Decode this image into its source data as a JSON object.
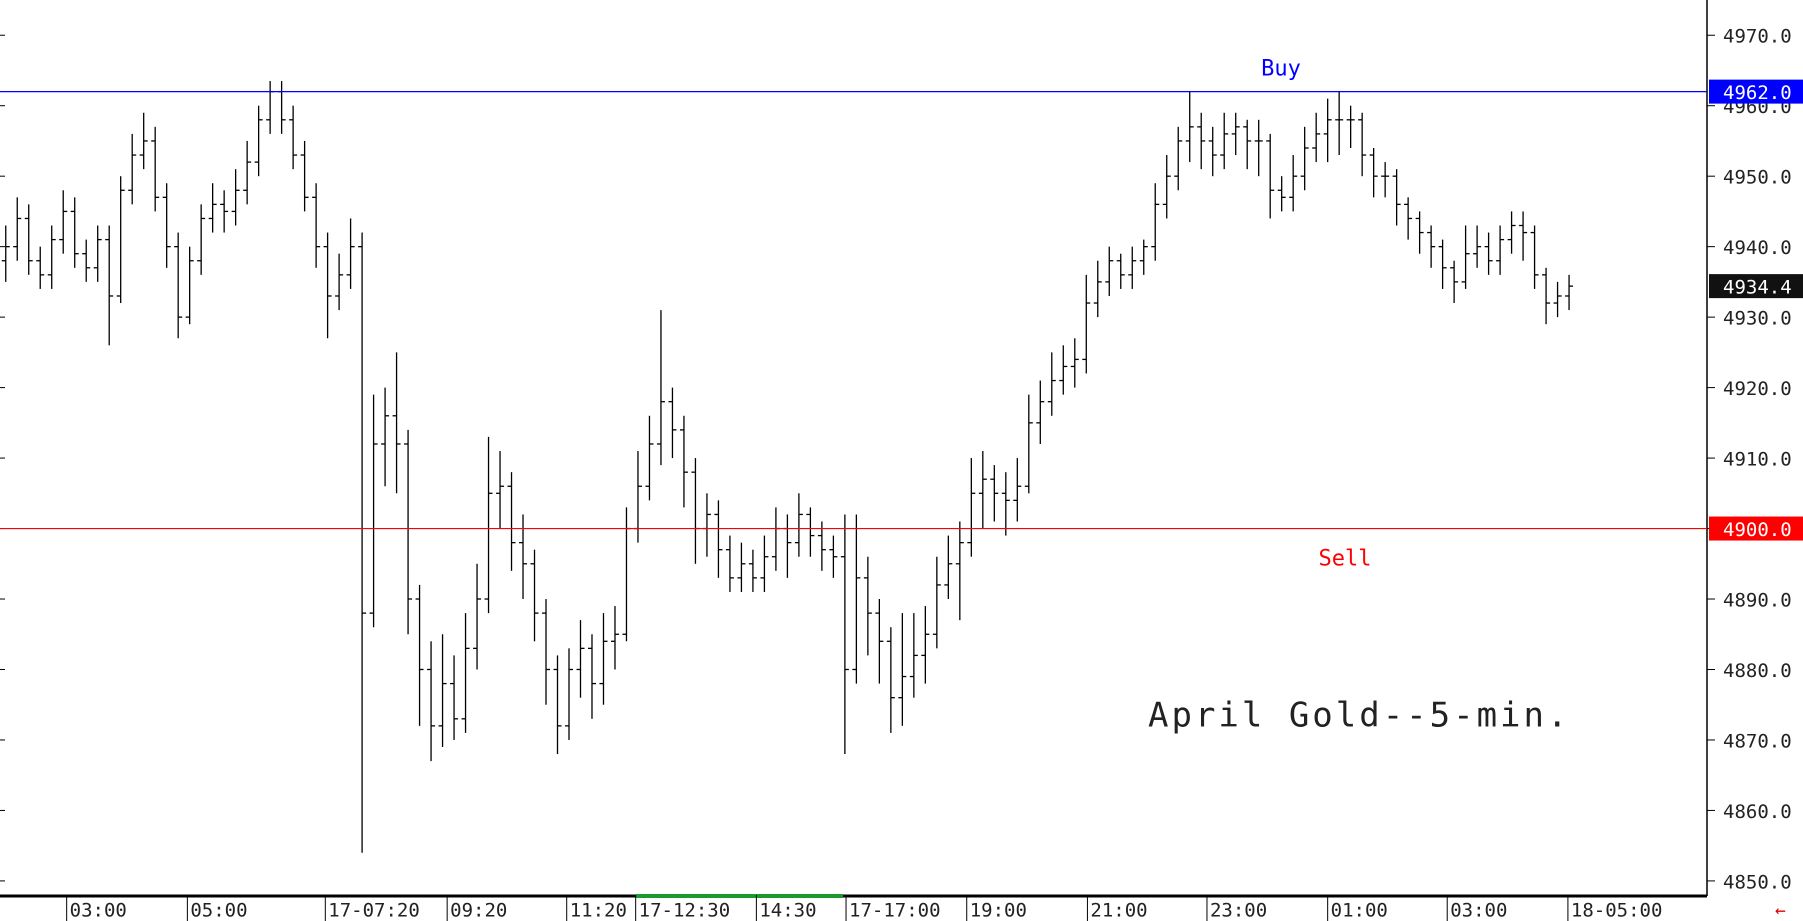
{
  "chart_data": {
    "type": "ohlc",
    "title": "April Gold--5-min.",
    "color": "#000000",
    "open": [
      4938,
      4940,
      4944,
      4938,
      4936,
      4941,
      4945,
      4939,
      4937,
      4941,
      4933,
      4948,
      4953,
      4955,
      4947,
      4940,
      4930,
      4938,
      4944,
      4946,
      4945,
      4948,
      4952,
      4958,
      4962,
      4958,
      4953,
      4947,
      4940,
      4933,
      4936,
      4940,
      4888,
      4912,
      4916,
      4912,
      4890,
      4880,
      4872,
      4878,
      4873,
      4883,
      4890,
      4905,
      4906,
      4898,
      4895,
      4888,
      4880,
      4872,
      4880,
      4883,
      4878,
      4884,
      4885,
      4900,
      4906,
      4912,
      4918,
      4914,
      4908,
      4900,
      4902,
      4897,
      4893,
      4895,
      4893,
      4896,
      4900,
      4898,
      4902,
      4899,
      4897,
      4896,
      4880,
      4893,
      4888,
      4884,
      4876,
      4879,
      4882,
      4885,
      4892,
      4895,
      4898,
      4905,
      4907,
      4905,
      4904,
      4906,
      4915,
      4918,
      4921,
      4923,
      4924,
      4932,
      4935,
      4938,
      4936,
      4938,
      4940,
      4946,
      4950,
      4955,
      4957,
      4955,
      4953,
      4956,
      4957,
      4955,
      4955,
      4948,
      4947,
      4950,
      4954,
      4956,
      4958,
      4958,
      4958,
      4953,
      4950,
      4950,
      4946,
      4944,
      4942,
      4940,
      4937,
      4935,
      4939,
      4940,
      4938,
      4941,
      4943,
      4942,
      4936,
      4932,
      4933
    ],
    "high": [
      4943,
      4947,
      4946,
      4940,
      4943,
      4948,
      4947,
      4941,
      4943,
      4943,
      4950,
      4956,
      4959,
      4957,
      4949,
      4942,
      4940,
      4946,
      4949,
      4948,
      4951,
      4955,
      4960,
      4963.5,
      4963.5,
      4960,
      4955,
      4949,
      4942,
      4939,
      4944,
      4942,
      4919,
      4920,
      4925,
      4914,
      4892,
      4884,
      4885,
      4882,
      4888,
      4895,
      4913,
      4911,
      4908,
      4902,
      4897,
      4890,
      4882,
      4883,
      4887,
      4885,
      4888,
      4889,
      4903,
      4911,
      4916,
      4931,
      4920,
      4916,
      4910,
      4905,
      4904,
      4899,
      4898,
      4897,
      4899,
      4903,
      4902,
      4905,
      4903,
      4901,
      4899,
      4902,
      4902,
      4896,
      4890,
      4886,
      4888,
      4888,
      4889,
      4896,
      4899,
      4901,
      4910,
      4911,
      4909,
      4908,
      4910,
      4919,
      4921,
      4925,
      4926,
      4927,
      4936,
      4938,
      4940,
      4939,
      4940,
      4941,
      4949,
      4953,
      4957,
      4962,
      4959,
      4957,
      4959,
      4959,
      4958,
      4958,
      4956,
      4950,
      4953,
      4957,
      4959,
      4961,
      4962,
      4960,
      4959,
      4954,
      4952,
      4951,
      4947,
      4945,
      4943,
      4941,
      4938,
      4943,
      4943,
      4942,
      4943,
      4945,
      4945,
      4943,
      4937,
      4935,
      4936
    ],
    "low": [
      4935,
      4938,
      4936,
      4934,
      4934,
      4939,
      4937,
      4935,
      4935,
      4926,
      4932,
      4946,
      4951,
      4945,
      4937,
      4927,
      4929,
      4936,
      4942,
      4942,
      4943,
      4946,
      4950,
      4956,
      4956,
      4951,
      4945,
      4937,
      4927,
      4931,
      4934,
      4854,
      4886,
      4906,
      4905,
      4885,
      4872,
      4867,
      4869,
      4870,
      4871,
      4880,
      4888,
      4900,
      4894,
      4890,
      4884,
      4875,
      4868,
      4870,
      4876,
      4873,
      4875,
      4880,
      4884,
      4898,
      4904,
      4909,
      4910,
      4903,
      4895,
      4896,
      4893,
      4891,
      4891,
      4891,
      4891,
      4894,
      4893,
      4896,
      4896,
      4894,
      4893,
      4868,
      4878,
      4882,
      4878,
      4871,
      4872,
      4876,
      4878,
      4883,
      4890,
      4887,
      4896,
      4900,
      4901,
      4899,
      4901,
      4905,
      4912,
      4916,
      4919,
      4920,
      4922,
      4930,
      4933,
      4934,
      4934,
      4936,
      4938,
      4944,
      4948,
      4952,
      4951,
      4950,
      4951,
      4953,
      4951,
      4950,
      4944,
      4945,
      4945,
      4948,
      4952,
      4952,
      4953,
      4954,
      4950,
      4947,
      4947,
      4943,
      4941,
      4939,
      4937,
      4934,
      4932,
      4934,
      4937,
      4936,
      4936,
      4939,
      4938,
      4934,
      4929,
      4930,
      4931
    ],
    "close": [
      4940,
      4944,
      4938,
      4936,
      4941,
      4945,
      4939,
      4937,
      4941,
      4933,
      4948,
      4953,
      4955,
      4947,
      4940,
      4930,
      4938,
      4944,
      4946,
      4945,
      4948,
      4952,
      4958,
      4962,
      4958,
      4953,
      4947,
      4940,
      4933,
      4936,
      4940,
      4888,
      4912,
      4916,
      4912,
      4890,
      4880,
      4872,
      4878,
      4873,
      4883,
      4890,
      4905,
      4906,
      4898,
      4895,
      4888,
      4880,
      4872,
      4880,
      4883,
      4878,
      4884,
      4885,
      4900,
      4906,
      4912,
      4918,
      4914,
      4908,
      4900,
      4902,
      4897,
      4893,
      4895,
      4893,
      4896,
      4900,
      4898,
      4902,
      4899,
      4897,
      4896,
      4880,
      4893,
      4888,
      4884,
      4876,
      4879,
      4882,
      4885,
      4892,
      4895,
      4898,
      4905,
      4907,
      4905,
      4904,
      4906,
      4915,
      4918,
      4921,
      4923,
      4924,
      4932,
      4935,
      4938,
      4936,
      4938,
      4940,
      4946,
      4950,
      4955,
      4957,
      4955,
      4953,
      4956,
      4957,
      4955,
      4955,
      4948,
      4947,
      4950,
      4954,
      4956,
      4958,
      4958,
      4958,
      4953,
      4950,
      4950,
      4946,
      4944,
      4942,
      4940,
      4937,
      4935,
      4939,
      4940,
      4938,
      4941,
      4943,
      4942,
      4936,
      4932,
      4933,
      4934.4
    ],
    "xlim": [
      -0.5,
      148
    ],
    "xticks": [
      {
        "value": 5.3,
        "label": "03:00"
      },
      {
        "value": 15.8,
        "label": "05:00"
      },
      {
        "value": 27.8,
        "label": "17-07:20"
      },
      {
        "value": 38.4,
        "label": "09:20"
      },
      {
        "value": 48.8,
        "label": "11:20"
      },
      {
        "value": 54.8,
        "label": "17-12:30"
      },
      {
        "value": 65.3,
        "label": "14:30"
      },
      {
        "value": 73.1,
        "label": "17-17:00"
      },
      {
        "value": 83.6,
        "label": "19:00"
      },
      {
        "value": 94.1,
        "label": "21:00"
      },
      {
        "value": 104.5,
        "label": "23:00"
      },
      {
        "value": 115,
        "label": "01:00"
      },
      {
        "value": 125.4,
        "label": "03:00"
      },
      {
        "value": 135.9,
        "label": "18-05:00"
      }
    ],
    "ylim": [
      4848,
      4975
    ],
    "yticks": [
      {
        "value": 4850,
        "label": "4850.0"
      },
      {
        "value": 4860,
        "label": "4860.0"
      },
      {
        "value": 4870,
        "label": "4870.0"
      },
      {
        "value": 4880,
        "label": "4880.0"
      },
      {
        "value": 4890,
        "label": "4890.0"
      },
      {
        "value": 4900,
        "label": "4900.0"
      },
      {
        "value": 4910,
        "label": "4910.0"
      },
      {
        "value": 4920,
        "label": "4920.0"
      },
      {
        "value": 4930,
        "label": "4930.0"
      },
      {
        "value": 4940,
        "label": "4940.0"
      },
      {
        "value": 4950,
        "label": "4950.0"
      },
      {
        "value": 4960,
        "label": "4960.0"
      },
      {
        "value": 4970,
        "label": "4970.0"
      }
    ],
    "hlines": [
      {
        "name": "Buy",
        "value": 4962,
        "label": "4962.0",
        "color": "#0000ff"
      },
      {
        "name": "Sell",
        "value": 4900,
        "label": "4900.0",
        "color": "#ff0000"
      }
    ],
    "last_price": 4934.4
  }
}
